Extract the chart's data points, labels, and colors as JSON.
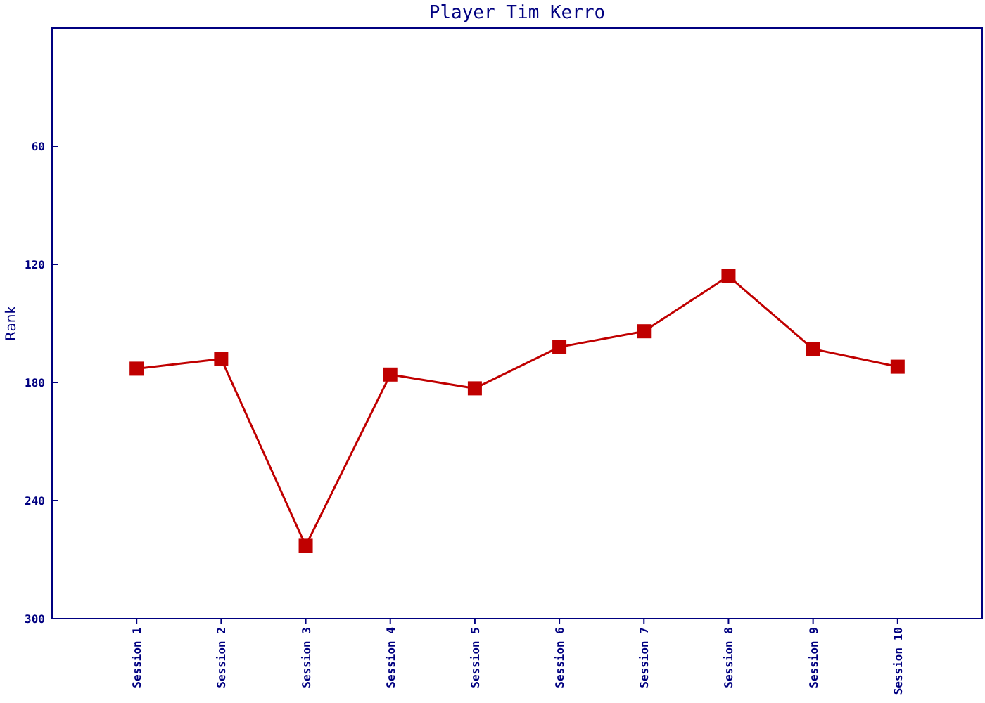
{
  "chart_data": {
    "type": "line",
    "title": "Player Tim Kerro",
    "ylabel": "Rank",
    "categories": [
      "Session 1",
      "Session 2",
      "Session 3",
      "Session 4",
      "Session 5",
      "Session 6",
      "Session 7",
      "Session 8",
      "Session 9",
      "Session 10"
    ],
    "series": [
      {
        "color": "#c00000",
        "values": [
          173,
          168,
          263,
          176,
          183,
          162,
          154,
          126,
          163,
          172
        ]
      }
    ],
    "ylim": [
      300,
      0
    ],
    "yticks": [
      60,
      120,
      180,
      240,
      300
    ],
    "grid": false,
    "marker": "square",
    "line_style": "solid"
  }
}
